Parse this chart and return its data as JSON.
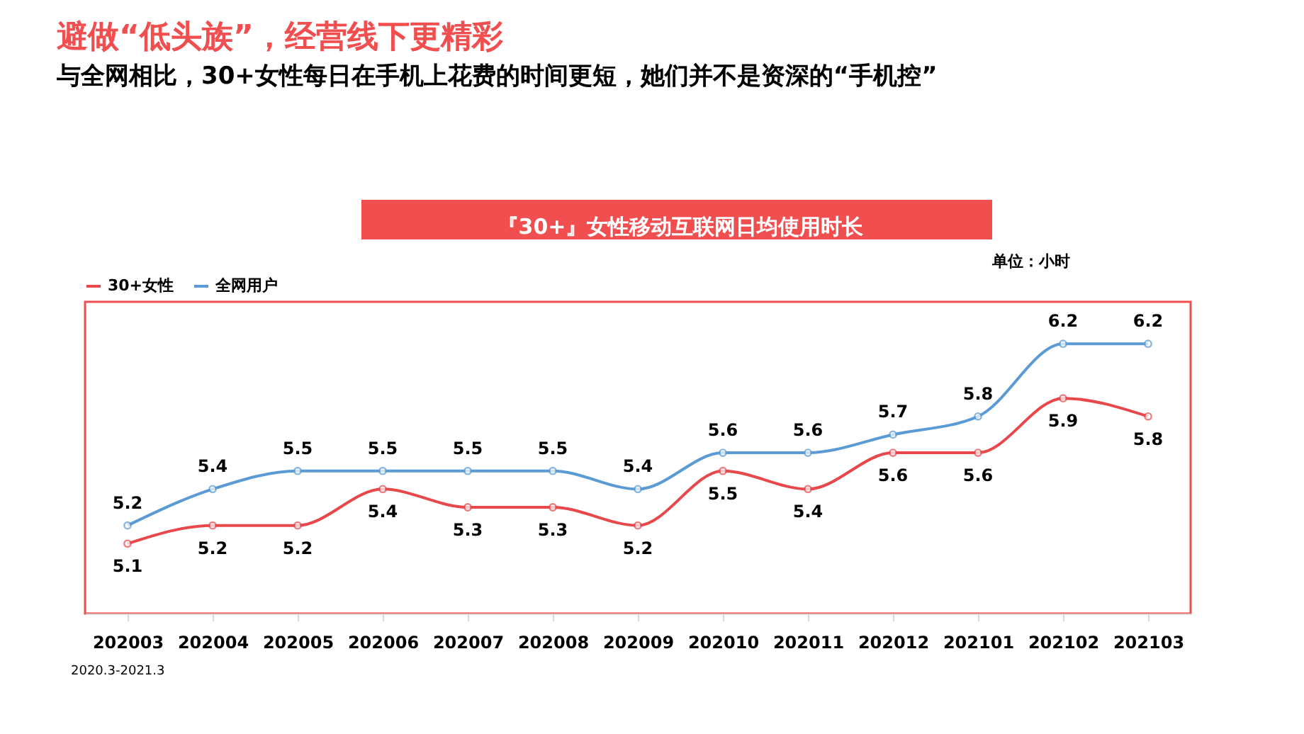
{
  "chart_data": {
    "type": "line",
    "title": "避做“低头族”，经营线下更精彩",
    "subtitle": "与全网相比，30+女性每日在手机上花费的时间更短，她们并不是资深的“手机控”",
    "categories": [
      "202003",
      "202004",
      "202005",
      "202006",
      "202007",
      "202008",
      "202009",
      "202010",
      "202011",
      "202012",
      "202101",
      "202102",
      "202103"
    ],
    "series": [
      {
        "name": "30+女性",
        "color": "#e8484b",
        "values": [
          5.1,
          5.2,
          5.2,
          5.4,
          5.3,
          5.3,
          5.2,
          5.5,
          5.4,
          5.6,
          5.6,
          5.9,
          5.8
        ]
      },
      {
        "name": "全网用户",
        "color": "#5b9bd5",
        "values": [
          5.2,
          5.4,
          5.5,
          5.5,
          5.5,
          5.5,
          5.4,
          5.6,
          5.6,
          5.7,
          5.8,
          6.2,
          6.2
        ]
      }
    ],
    "annotations": [
      "『30+』女性移动互联网日均使用时长",
      "单位：小时",
      "2020.3-2021.3"
    ],
    "data_labels": true,
    "legend": "top",
    "marker": "circle",
    "line_style": "solid",
    "grid": false
  }
}
